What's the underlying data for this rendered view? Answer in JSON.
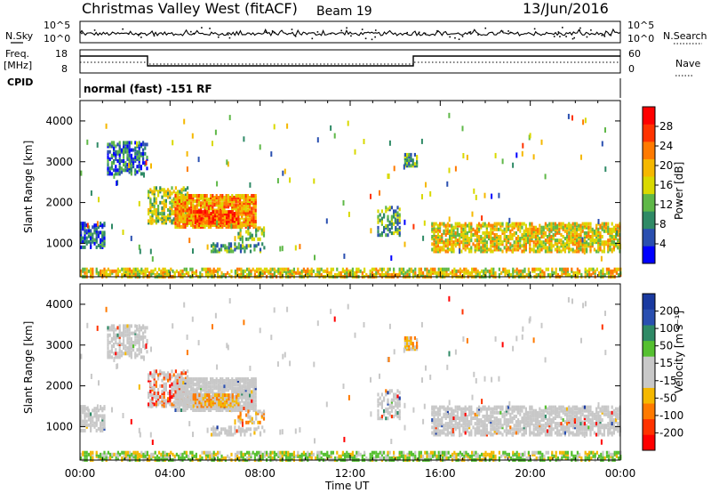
{
  "header": {
    "title": "Christmas Valley West (fitACF)",
    "beam": "Beam 19",
    "date": "13/Jun/2016"
  },
  "left_labels": {
    "nsky": "N.Sky",
    "freq_line1": "Freq.",
    "freq_line2": "[MHz]",
    "cpid": "CPID"
  },
  "right_labels": {
    "nsearch": "N.Search",
    "nave": "Nave"
  },
  "cpid_text": "normal (fast) -151 RF",
  "colors": {
    "power_scale": [
      "#0000ff",
      "#2a4fb0",
      "#2f8a66",
      "#5fb848",
      "#d9d900",
      "#f5b800",
      "#ff7a00",
      "#ff3300",
      "#ff0000"
    ],
    "velocity_scale": [
      "#ff0000",
      "#ff3300",
      "#ff7a00",
      "#f5b800",
      "#c8c8c8",
      "#c8c8c8",
      "#55c030",
      "#2f8a66",
      "#2a4fb0",
      "#1a3aa0"
    ],
    "ground_scatter": "#c8c8c8"
  },
  "chart_data": [
    {
      "type": "line",
      "name": "noise",
      "y_left_ticks": [
        "10^5",
        "10^0"
      ],
      "y_right_ticks": [
        "10^5",
        "10^0"
      ]
    },
    {
      "type": "line",
      "name": "frequency",
      "y_left_ticks": [
        "18",
        "8"
      ],
      "y_right_ticks": [
        "60",
        "0"
      ]
    },
    {
      "type": "heatmap",
      "name": "power",
      "ylabel": "Slant Range [km]",
      "y_ticks": [
        "4000",
        "3000",
        "2000",
        "1000"
      ],
      "ylim": [
        180,
        4500
      ],
      "colorbar_label": "Power [dB]",
      "colorbar_ticks": [
        "28",
        "24",
        "20",
        "16",
        "12",
        "8",
        "4"
      ],
      "clim": [
        0,
        32
      ]
    },
    {
      "type": "heatmap",
      "name": "velocity",
      "ylabel": "Slant Range [km]",
      "y_ticks": [
        "4000",
        "3000",
        "2000",
        "1000"
      ],
      "ylim": [
        180,
        4500
      ],
      "colorbar_label": "Velocity [m s⁻¹]",
      "colorbar_ticks": [
        "200",
        "100",
        "50",
        "15",
        "-15",
        "-50",
        "-100",
        "-200"
      ],
      "xlabel": "Time UT",
      "x_ticks": [
        "00:00",
        "04:00",
        "08:00",
        "12:00",
        "16:00",
        "20:00",
        "00:00"
      ],
      "xlim_hours": [
        0,
        24
      ]
    }
  ]
}
